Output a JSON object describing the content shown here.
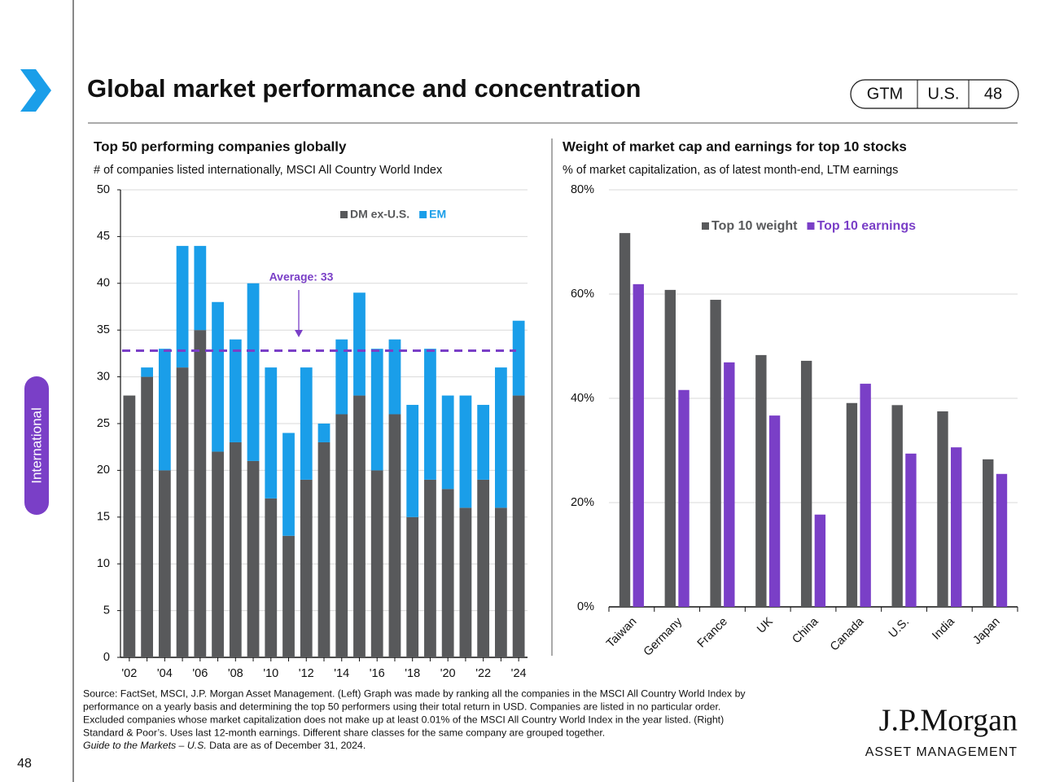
{
  "header": {
    "section": "International",
    "title": "Global market performance and concentration",
    "badges": [
      "GTM",
      "U.S.",
      "48"
    ]
  },
  "chart_data": [
    {
      "type": "bar",
      "stacked": true,
      "title": "Top 50 performing companies globally",
      "subtitle": "# of companies listed internationally, MSCI All Country World Index",
      "categories": [
        "'02",
        null,
        "'04",
        null,
        "'06",
        null,
        "'08",
        null,
        "'10",
        null,
        "'12",
        null,
        "'14",
        null,
        "'16",
        null,
        "'18",
        null,
        "'20",
        null,
        "'22",
        null,
        "'24"
      ],
      "series": [
        {
          "name": "DM ex-U.S.",
          "color": "#58595b",
          "values": [
            28,
            30,
            20,
            31,
            35,
            22,
            23,
            21,
            17,
            13,
            19,
            23,
            26,
            28,
            20,
            26,
            15,
            19,
            18,
            16,
            19,
            16,
            28
          ]
        },
        {
          "name": "EM",
          "color": "#1a9ee9",
          "values": [
            0,
            1,
            13,
            13,
            9,
            16,
            11,
            19,
            14,
            11,
            12,
            2,
            8,
            11,
            13,
            8,
            12,
            14,
            10,
            12,
            8,
            15,
            8
          ]
        }
      ],
      "average": {
        "value": 32.8,
        "label": "Average: 33",
        "color": "#7a3fc7"
      },
      "ylim": [
        0,
        50
      ],
      "yticks": [
        0,
        5,
        10,
        15,
        20,
        25,
        30,
        35,
        40,
        45,
        50
      ],
      "grid": true,
      "legend": "top"
    },
    {
      "type": "bar",
      "stacked": false,
      "title": "Weight of market cap and earnings for top 10 stocks",
      "subtitle": "% of market capitalization, as of latest month-end, LTM earnings",
      "categories": [
        "Taiwan",
        "Germany",
        "France",
        "UK",
        "China",
        "Canada",
        "U.S.",
        "India",
        "Japan"
      ],
      "series": [
        {
          "name": "Top 10 weight",
          "color": "#58595b",
          "values": [
            71.7,
            60.8,
            58.9,
            48.3,
            47.2,
            39.1,
            38.7,
            37.5,
            28.3
          ]
        },
        {
          "name": "Top 10 earnings",
          "color": "#7a3fc7",
          "values": [
            61.9,
            41.6,
            46.9,
            36.7,
            17.7,
            42.8,
            29.4,
            30.6,
            25.5
          ]
        }
      ],
      "ylim": [
        0,
        80
      ],
      "yticks": [
        {
          "value": 0,
          "label": "0%"
        },
        {
          "value": 20,
          "label": "20%"
        },
        {
          "value": 40,
          "label": "40%"
        },
        {
          "value": 60,
          "label": "60%"
        },
        {
          "value": 80,
          "label": "80%"
        }
      ],
      "grid": true,
      "legend": "top"
    }
  ],
  "footer": {
    "source": [
      "Source: FactSet, MSCI, J.P. Morgan Asset Management. (Left) Graph was made by ranking all the companies in the MSCI All Country World Index by",
      "performance on a yearly basis and determining the top 50 performers using their total return in USD. Companies are listed in no particular order.",
      "Excluded companies whose market capitalization does not make up at least 0.01% of the MSCI All Country World Index in the year listed. (Right)",
      "Standard & Poor’s. Uses last 12-month earnings. Different share classes for the same company are grouped together."
    ],
    "guide": "Guide to the Markets – U.S.",
    "date": "Data are as of December 31, 2024.",
    "page_number": "48",
    "logo": "J.P.Morgan",
    "logo_sub": "ASSET MANAGEMENT"
  }
}
